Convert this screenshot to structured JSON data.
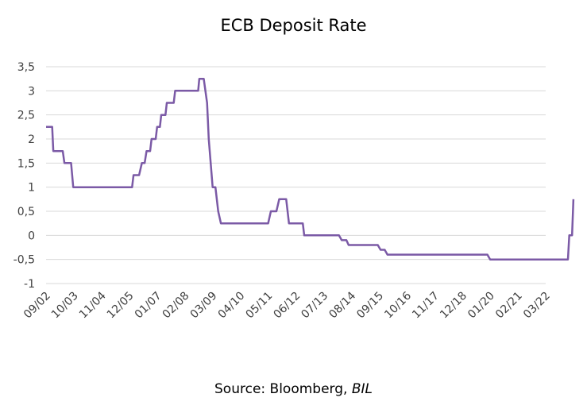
{
  "chart_data": {
    "type": "line",
    "title": "ECB Deposit Rate",
    "xlabel": "",
    "ylabel": "",
    "ylim": [
      -1,
      3.5
    ],
    "yticks": [
      "3,5",
      "3",
      "2,5",
      "2",
      "1,5",
      "1",
      "0,5",
      "0",
      "-0,5",
      "-1"
    ],
    "xtick_labels": [
      "09/02",
      "10/03",
      "11/04",
      "12/05",
      "01/07",
      "02/08",
      "03/09",
      "04/10",
      "05/11",
      "06/12",
      "07/13",
      "08/14",
      "09/15",
      "10/16",
      "11/17",
      "12/18",
      "01/20",
      "02/21",
      "03/22"
    ],
    "grid": true,
    "legend": "none",
    "series": [
      {
        "color": "#7b5aa6",
        "x": [
          0,
          0.22,
          0.26,
          0.6,
          0.66,
          0.9,
          0.98,
          1.22,
          1.26,
          2.0,
          2.05,
          2.6,
          2.65,
          2.9,
          2.95,
          3.1,
          3.15,
          3.35,
          3.45,
          3.55,
          3.62,
          3.75,
          3.8,
          3.95,
          4.0,
          4.1,
          4.15,
          4.3,
          4.35,
          4.6,
          4.65,
          5.0,
          5.05,
          5.15,
          5.2,
          5.48,
          5.52,
          5.6,
          5.68,
          5.8,
          5.86,
          6.0,
          6.1,
          6.2,
          6.3,
          8.0,
          8.1,
          8.3,
          8.4,
          8.65,
          8.75,
          9.25,
          9.3,
          10.55,
          10.65,
          10.82,
          10.9,
          11.95,
          12.05,
          12.2,
          12.3,
          15.9,
          16.0,
          18.8,
          18.85,
          18.95,
          19.0
        ],
        "values": [
          2.25,
          2.25,
          1.75,
          1.75,
          1.5,
          1.5,
          1.0,
          1.0,
          1.0,
          1.0,
          1.0,
          1.0,
          1.0,
          1.0,
          1.0,
          1.0,
          1.25,
          1.25,
          1.5,
          1.5,
          1.75,
          1.75,
          2.0,
          2.0,
          2.25,
          2.25,
          2.5,
          2.5,
          2.75,
          2.75,
          3.0,
          3.0,
          3.0,
          3.0,
          3.0,
          3.0,
          3.25,
          3.25,
          3.25,
          2.75,
          2.0,
          1.0,
          1.0,
          0.5,
          0.25,
          0.25,
          0.5,
          0.5,
          0.75,
          0.75,
          0.25,
          0.25,
          0.0,
          0.0,
          -0.1,
          -0.1,
          -0.2,
          -0.2,
          -0.3,
          -0.3,
          -0.4,
          -0.4,
          -0.5,
          -0.5,
          0.0,
          0.0,
          0.75
        ]
      }
    ]
  },
  "source": {
    "prefix": "Source: Bloomberg, ",
    "suffix": "BIL"
  }
}
